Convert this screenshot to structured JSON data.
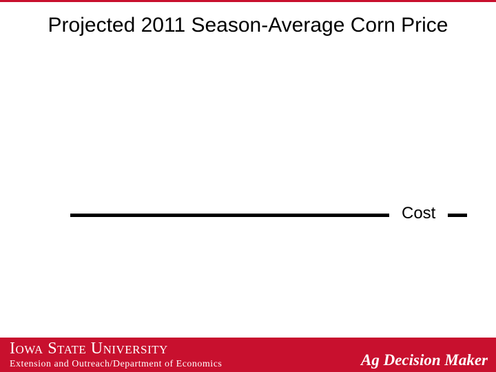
{
  "header": {
    "title": "Projected 2011 Season-Average Corn Price"
  },
  "annotation": {
    "label": "Cost"
  },
  "footer": {
    "university": "Iowa State University",
    "department": "Extension and Outreach/Department of Economics",
    "brand": "Ag Decision Maker"
  }
}
